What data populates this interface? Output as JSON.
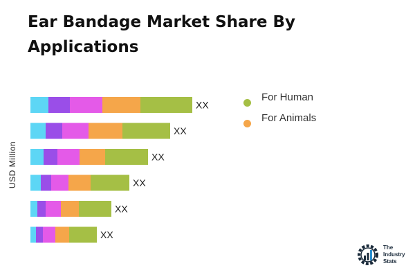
{
  "title": "Ear Bandage Market Share By Applications",
  "chart_data": {
    "type": "bar",
    "orientation": "horizontal",
    "stacked": true,
    "ylabel": "USD Million",
    "categories": [
      "",
      "",
      "",
      "",
      "",
      ""
    ],
    "series": [
      {
        "color": "#5dd6f5",
        "values": [
          26,
          22,
          19,
          15,
          10,
          8
        ]
      },
      {
        "color": "#9a4ee8",
        "values": [
          31,
          24,
          20,
          15,
          12,
          10
        ]
      },
      {
        "color": "#e45ae8",
        "values": [
          47,
          38,
          32,
          25,
          22,
          18
        ]
      },
      {
        "color": "#f5a64a",
        "values": [
          55,
          49,
          37,
          32,
          26,
          20
        ]
      },
      {
        "color": "#a5bf45",
        "values": [
          75,
          69,
          62,
          56,
          47,
          40
        ]
      }
    ],
    "data_labels": [
      "XX",
      "XX",
      "XX",
      "XX",
      "XX",
      "XX"
    ],
    "legend": {
      "position": "right",
      "items": [
        {
          "label": "For Human",
          "color": "#a5bf45"
        },
        {
          "label": "For Animals",
          "color": "#f5a64a"
        }
      ]
    }
  },
  "brand": {
    "line1": "The",
    "line2": "Industry",
    "line3": "Stats",
    "icon": "gear-chart-icon"
  }
}
